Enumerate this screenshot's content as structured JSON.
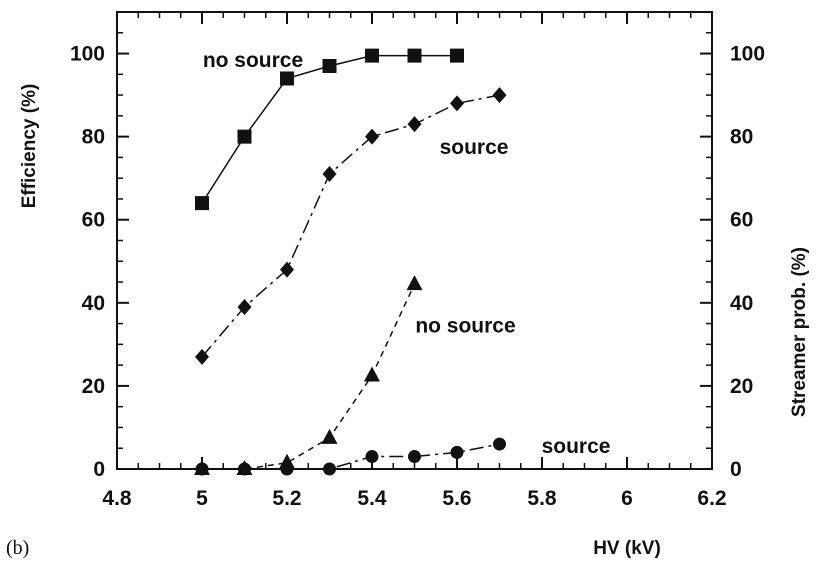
{
  "panel_label": "(b)",
  "chart_data": {
    "type": "line",
    "xlabel": "HV  (kV)",
    "ylabel_left": "Efficiency   (%)",
    "ylabel_right": "Streamer  prob.   (%)",
    "xlim": [
      4.8,
      6.2
    ],
    "ylim": [
      0,
      110
    ],
    "x_ticks": [
      "4.8",
      "5",
      "5.2",
      "5.4",
      "5.6",
      "5.8",
      "6",
      "6.2"
    ],
    "y_ticks": [
      "0",
      "20",
      "40",
      "60",
      "80",
      "100"
    ],
    "grid": false,
    "series": [
      {
        "axis": "left",
        "marker": "square",
        "line": "solid",
        "x": [
          5.0,
          5.1,
          5.2,
          5.3,
          5.4,
          5.5,
          5.6
        ],
        "y": [
          64,
          80,
          94,
          97,
          99.5,
          99.5,
          99.5
        ]
      },
      {
        "axis": "left",
        "marker": "diamond",
        "line": "dash-dot",
        "x": [
          5.0,
          5.1,
          5.2,
          5.3,
          5.4,
          5.5,
          5.6,
          5.7
        ],
        "y": [
          27,
          39,
          48,
          71,
          80,
          83,
          88,
          90
        ]
      },
      {
        "axis": "right",
        "marker": "triangle",
        "line": "dashed",
        "x": [
          5.0,
          5.1,
          5.2,
          5.3,
          5.4,
          5.5
        ],
        "y": [
          0,
          0,
          1.5,
          7.5,
          22.5,
          44.5
        ]
      },
      {
        "axis": "right",
        "marker": "circle",
        "line": "dash-dot",
        "x": [
          5.0,
          5.1,
          5.2,
          5.3,
          5.4,
          5.5,
          5.6,
          5.7
        ],
        "y": [
          0,
          0,
          0,
          0,
          3,
          3,
          4,
          6
        ]
      }
    ],
    "annotations": [
      {
        "text": "no  source",
        "x": 5.12,
        "y": 98.5
      },
      {
        "text": "source",
        "x": 5.64,
        "y": 77.5
      },
      {
        "text": "no  source",
        "x": 5.62,
        "y": 34.5
      },
      {
        "text": "source",
        "x": 5.88,
        "y": 5.5
      }
    ]
  }
}
